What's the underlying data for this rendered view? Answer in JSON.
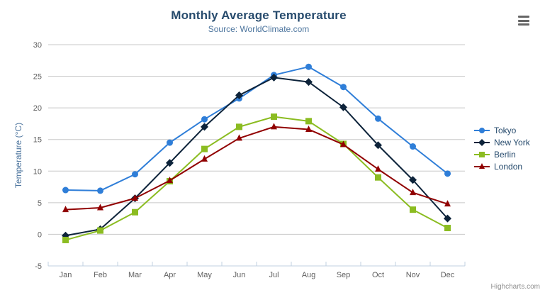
{
  "header": {
    "title": "Monthly Average Temperature",
    "subtitle": "Source: WorldClimate.com"
  },
  "credits": "Highcharts.com",
  "chart_data": {
    "type": "line",
    "title": "Monthly Average Temperature",
    "subtitle": "Source: WorldClimate.com",
    "categories": [
      "Jan",
      "Feb",
      "Mar",
      "Apr",
      "May",
      "Jun",
      "Jul",
      "Aug",
      "Sep",
      "Oct",
      "Nov",
      "Dec"
    ],
    "series": [
      {
        "name": "Tokyo",
        "color": "#2f7ed8",
        "marker": "circle",
        "values": [
          7.0,
          6.9,
          9.5,
          14.5,
          18.2,
          21.5,
          25.2,
          26.5,
          23.3,
          18.3,
          13.9,
          9.6
        ]
      },
      {
        "name": "New York",
        "color": "#0d233a",
        "marker": "diamond",
        "values": [
          -0.2,
          0.8,
          5.7,
          11.3,
          17.0,
          22.0,
          24.8,
          24.1,
          20.1,
          14.1,
          8.6,
          2.5
        ]
      },
      {
        "name": "Berlin",
        "color": "#8bbc21",
        "marker": "square",
        "values": [
          -0.9,
          0.6,
          3.5,
          8.4,
          13.5,
          17.0,
          18.6,
          17.9,
          14.3,
          9.0,
          3.9,
          1.0
        ]
      },
      {
        "name": "London",
        "color": "#910000",
        "marker": "triangle",
        "values": [
          3.9,
          4.2,
          5.7,
          8.5,
          11.9,
          15.2,
          17.0,
          16.6,
          14.2,
          10.3,
          6.6,
          4.8
        ]
      }
    ],
    "xlabel": "",
    "ylabel": "Temperature (°C)",
    "ylim": [
      -5,
      30
    ],
    "ytick_interval": 5,
    "yticks": [
      -5,
      0,
      5,
      10,
      15,
      20,
      25,
      30
    ],
    "grid": true,
    "legend_position": "right"
  },
  "colors": {
    "grid_line": "#c8c8c8",
    "axis_line": "#c0d0e0",
    "tick_label": "#606060",
    "title": "#274b6d",
    "subtitle": "#4d759e",
    "axis_title": "#4d759e",
    "legend_text": "#274b6d",
    "credits_text": "#909090",
    "menu_icon": "#666666"
  }
}
